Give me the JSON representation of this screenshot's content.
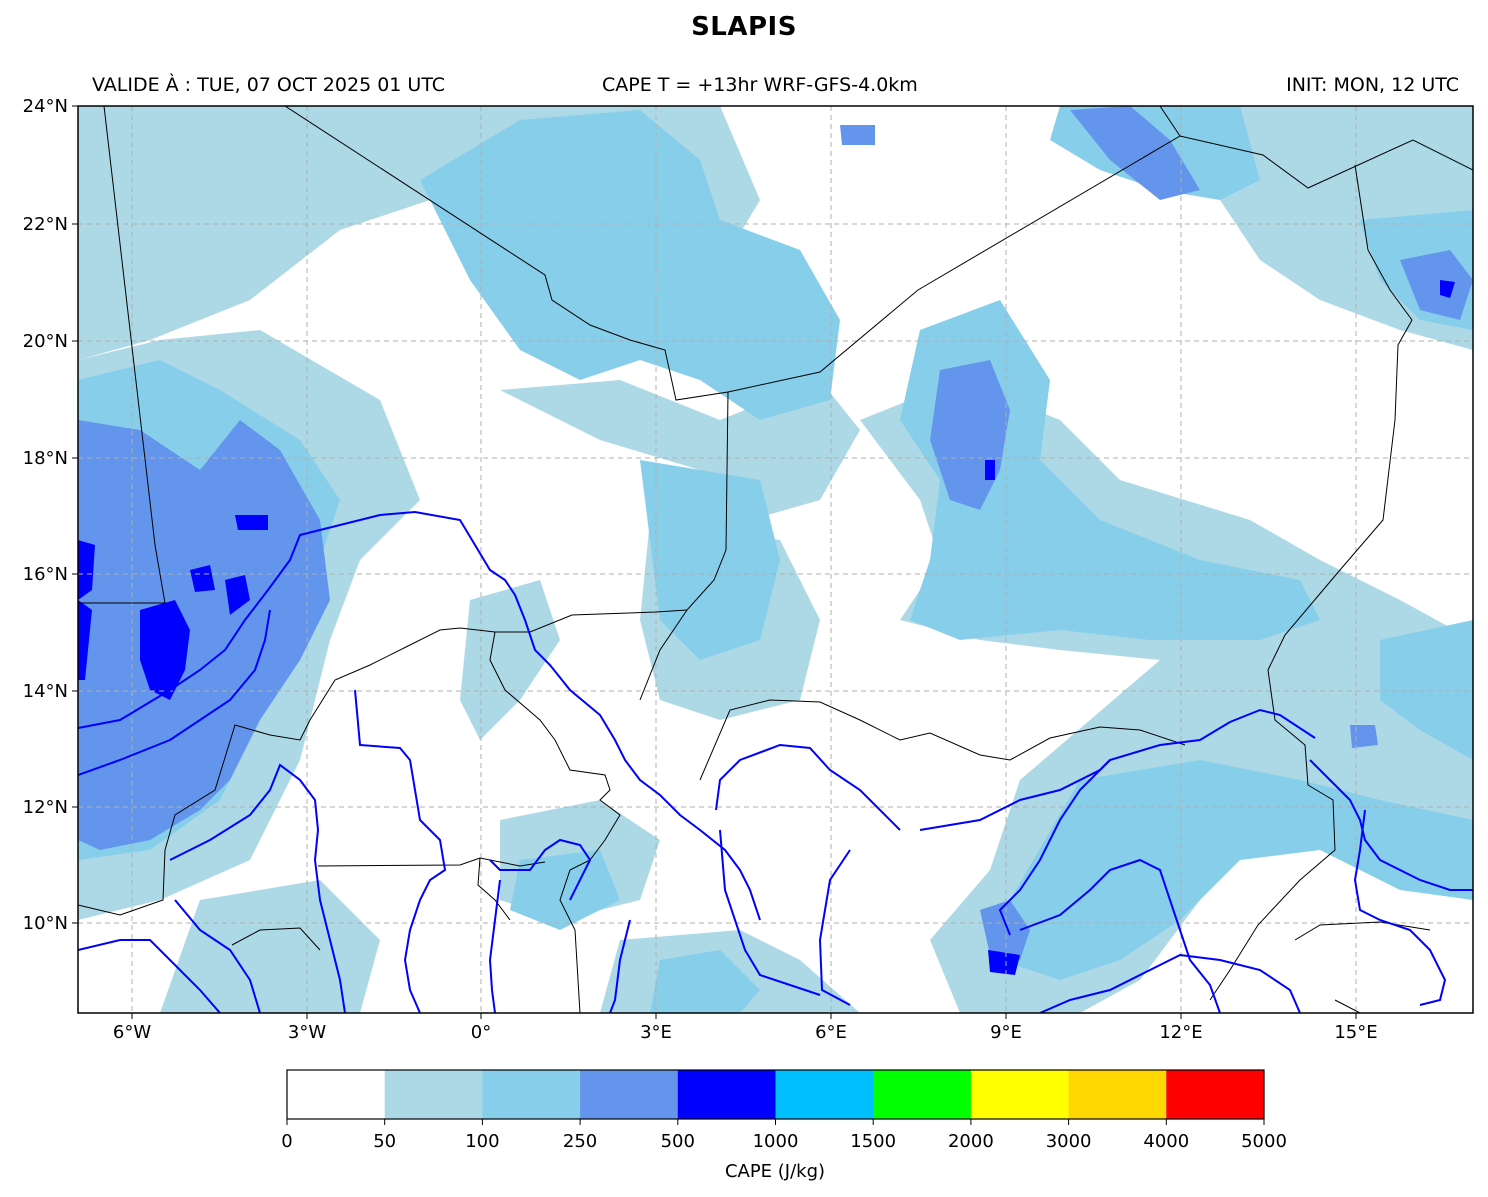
{
  "title": "SLAPIS",
  "subtitle_left": "VALIDE À : TUE, 07 OCT 2025 01 UTC",
  "subtitle_center": "CAPE T = +13hr WRF-GFS-4.0km",
  "subtitle_right": "INIT: MON, 12 UTC",
  "lat_labels": [
    "10°N",
    "12°N",
    "14°N",
    "16°N",
    "18°N",
    "20°N",
    "22°N",
    "24°N"
  ],
  "lon_labels": [
    "6°W",
    "3°W",
    "0°",
    "3°E",
    "6°E",
    "9°E",
    "12°E",
    "15°E"
  ],
  "map_extent": {
    "lon_min": -6.9,
    "lon_max": 17.1,
    "lat_min": 8.4,
    "lat_max": 24.0
  },
  "colorbar": {
    "label": "CAPE (J/kg)",
    "ticks": [
      "0",
      "50",
      "100",
      "250",
      "500",
      "1000",
      "1500",
      "2000",
      "3000",
      "4000",
      "5000"
    ],
    "colors": [
      "#ffffff",
      "#add8e6",
      "#87ceeb",
      "#6495ed",
      "#0000ff",
      "#00bfff",
      "#00ff00",
      "#ffff00",
      "#ffd700",
      "#ff0000"
    ]
  },
  "colors": {
    "cape_50_100": "#add8e6",
    "cape_100_250": "#87ceeb",
    "cape_250_500": "#6495ed",
    "cape_500_1000": "#0000ff",
    "rivers": "#0000ff",
    "borders": "#000000",
    "gridlines": "#b0b0b0"
  },
  "features": [
    "cape-field",
    "rivers",
    "country-borders",
    "gridlines"
  ]
}
